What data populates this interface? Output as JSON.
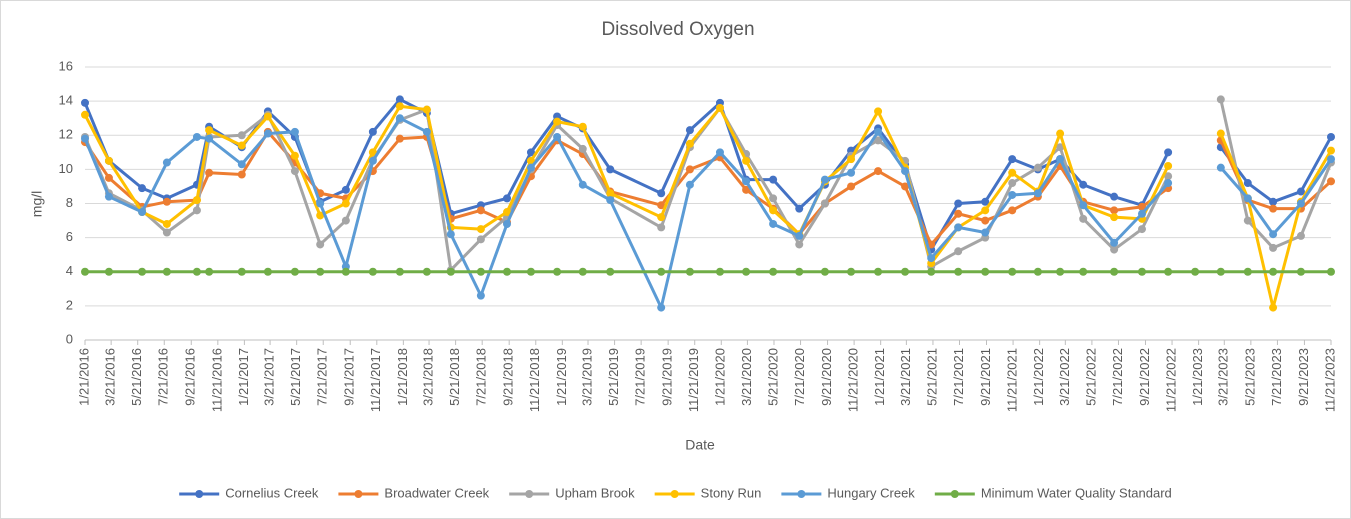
{
  "chart_data": {
    "type": "line",
    "title": "Dissolved Oxygen",
    "x_label": "Date",
    "y_label": "mg/l",
    "x": [
      "1/21/2016",
      "3/16/2016",
      "5/31/2016",
      "7/27/2016",
      "10/4/2016",
      "11/1/2016",
      "1/15/2017",
      "3/16/2017",
      "5/17/2017",
      "7/14/2017",
      "9/11/2017",
      "11/12/2017",
      "1/13/2018",
      "3/16/2018",
      "5/10/2018",
      "7/18/2018",
      "9/16/2018",
      "11/10/2018",
      "1/9/2019",
      "3/9/2019",
      "5/11/2019",
      "9/5/2019",
      "11/10/2019",
      "1/18/2020",
      "3/18/2020",
      "5/19/2020",
      "7/18/2020",
      "9/15/2020",
      "11/14/2020",
      "1/15/2021",
      "3/18/2021",
      "5/17/2021",
      "7/18/2021",
      "9/18/2021",
      "11/19/2021",
      "1/17/2022",
      "3/9/2022",
      "5/1/2022",
      "7/11/2022",
      "9/13/2022",
      "11/12/2022",
      "1/13/2023",
      "3/13/2023",
      "5/14/2023",
      "7/11/2023",
      "9/13/2023",
      "11/21/2023"
    ],
    "xlim": [
      "1/21/2016",
      "11/21/2023"
    ],
    "xticks": [
      "1/21/2016",
      "3/21/2016",
      "5/21/2016",
      "7/21/2016",
      "9/21/2016",
      "11/21/2016",
      "1/21/2017",
      "3/21/2017",
      "5/21/2017",
      "7/21/2017",
      "9/21/2017",
      "11/21/2017",
      "1/21/2018",
      "3/21/2018",
      "5/21/2018",
      "7/21/2018",
      "9/21/2018",
      "11/21/2018",
      "1/21/2019",
      "3/21/2019",
      "5/21/2019",
      "7/21/2019",
      "9/21/2019",
      "11/21/2019",
      "1/21/2020",
      "3/21/2020",
      "5/21/2020",
      "7/21/2020",
      "9/21/2020",
      "11/21/2020",
      "1/21/2021",
      "3/21/2021",
      "5/21/2021",
      "7/21/2021",
      "9/21/2021",
      "11/21/2021",
      "1/21/2022",
      "3/21/2022",
      "5/21/2022",
      "7/21/2022",
      "9/21/2022",
      "11/21/2022",
      "1/21/2023",
      "3/21/2023",
      "5/21/2023",
      "7/21/2023",
      "9/21/2023",
      "11/21/2023"
    ],
    "ylim": [
      0,
      16
    ],
    "yticks": [
      0,
      2,
      4,
      6,
      8,
      10,
      12,
      14,
      16
    ],
    "grid": true,
    "legend": "bottom",
    "series": [
      {
        "name": "Cornelius Creek",
        "color": "#4472c4",
        "values": [
          13.9,
          10.5,
          8.9,
          8.3,
          9.1,
          12.5,
          11.3,
          13.4,
          11.9,
          8.1,
          8.8,
          12.2,
          14.1,
          13.3,
          7.4,
          7.9,
          8.3,
          11.0,
          13.1,
          12.4,
          10.0,
          8.6,
          12.3,
          13.9,
          9.4,
          9.4,
          7.7,
          9.1,
          11.1,
          12.4,
          10.3,
          5.3,
          8.0,
          8.1,
          10.6,
          10.0,
          10.6,
          9.1,
          8.4,
          7.9,
          11.0,
          null,
          11.3,
          9.2,
          8.1,
          8.7,
          11.9
        ]
      },
      {
        "name": "Broadwater Creek",
        "color": "#ed7d31",
        "values": [
          11.6,
          9.5,
          7.8,
          8.1,
          8.2,
          9.8,
          9.7,
          12.2,
          10.4,
          8.6,
          8.3,
          9.9,
          11.8,
          11.9,
          7.1,
          7.6,
          6.9,
          9.6,
          11.7,
          10.9,
          8.7,
          7.9,
          10.0,
          10.7,
          8.8,
          7.7,
          6.2,
          8.0,
          9.0,
          9.9,
          9.0,
          5.6,
          7.4,
          7.0,
          7.6,
          8.4,
          10.2,
          8.1,
          7.6,
          7.8,
          8.9,
          null,
          11.7,
          8.2,
          7.7,
          7.7,
          9.3
        ]
      },
      {
        "name": "Upham Brook",
        "color": "#a5a5a5",
        "values": [
          11.9,
          8.6,
          7.6,
          6.3,
          7.6,
          11.9,
          12.0,
          13.2,
          9.9,
          5.6,
          7.0,
          10.6,
          12.9,
          13.5,
          4.1,
          5.9,
          7.2,
          10.0,
          12.6,
          11.2,
          8.3,
          6.6,
          11.3,
          13.6,
          10.9,
          8.3,
          5.6,
          8.0,
          10.8,
          11.7,
          10.5,
          4.3,
          5.2,
          6.0,
          9.2,
          10.1,
          11.3,
          7.1,
          5.3,
          6.5,
          9.6,
          null,
          14.1,
          7.0,
          5.4,
          6.1,
          10.4
        ]
      },
      {
        "name": "Stony Run",
        "color": "#ffc000",
        "values": [
          13.2,
          10.5,
          7.5,
          6.8,
          8.2,
          12.3,
          11.4,
          13.1,
          10.8,
          7.3,
          8.0,
          11.0,
          13.7,
          13.5,
          6.6,
          6.5,
          7.5,
          10.5,
          12.8,
          12.5,
          8.6,
          7.2,
          11.5,
          13.6,
          10.5,
          7.6,
          6.2,
          9.3,
          10.6,
          13.4,
          10.1,
          4.5,
          6.6,
          7.6,
          9.8,
          8.7,
          12.1,
          7.9,
          7.2,
          7.1,
          10.2,
          null,
          12.1,
          8.3,
          1.9,
          8.1,
          11.1
        ]
      },
      {
        "name": "Hungary Creek",
        "color": "#5b9bd5",
        "values": [
          11.8,
          8.4,
          7.5,
          10.4,
          11.9,
          11.8,
          10.3,
          12.1,
          12.2,
          8.0,
          4.3,
          10.5,
          13.0,
          12.2,
          6.2,
          2.6,
          6.8,
          10.1,
          11.9,
          9.1,
          8.2,
          1.9,
          9.1,
          11.0,
          9.3,
          6.8,
          6.1,
          9.4,
          9.8,
          12.2,
          9.9,
          4.8,
          6.6,
          6.3,
          8.5,
          8.6,
          10.6,
          7.9,
          5.7,
          7.4,
          9.2,
          null,
          10.1,
          8.3,
          6.2,
          8.0,
          10.6
        ]
      },
      {
        "name": "Minimum Water Quality Standard",
        "color": "#70ad47",
        "values": [
          4,
          4,
          4,
          4,
          4,
          4,
          4,
          4,
          4,
          4,
          4,
          4,
          4,
          4,
          4,
          4,
          4,
          4,
          4,
          4,
          4,
          4,
          4,
          4,
          4,
          4,
          4,
          4,
          4,
          4,
          4,
          4,
          4,
          4,
          4,
          4,
          4,
          4,
          4,
          4,
          4,
          4,
          4,
          4,
          4,
          4,
          4
        ]
      }
    ]
  }
}
